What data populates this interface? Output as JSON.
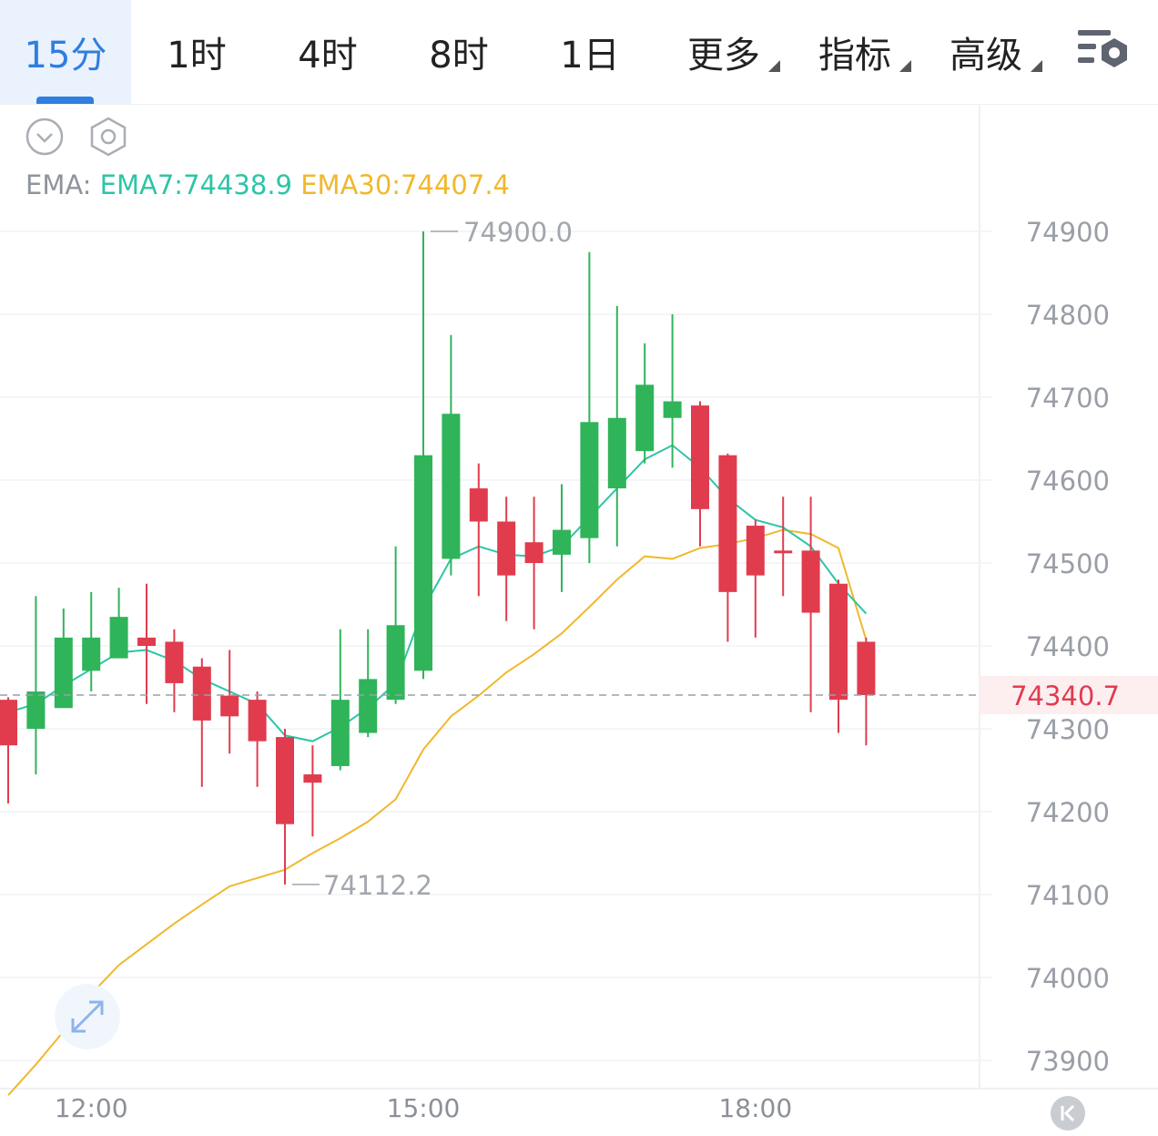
{
  "tabs": [
    {
      "label": "15分",
      "active": true
    },
    {
      "label": "1时"
    },
    {
      "label": "4时"
    },
    {
      "label": "8时"
    },
    {
      "label": "1日"
    },
    {
      "label": "更多",
      "dropdown": true
    },
    {
      "label": "指标",
      "dropdown": true
    },
    {
      "label": "高级",
      "dropdown": true
    }
  ],
  "icons": {
    "toolbar_settings": "chart-settings-icon",
    "collapse": "chevron-down-circle-icon",
    "settings": "hexagon-settings-icon",
    "expand": "expand-arrows-icon",
    "back": "double-chevron-left-icon"
  },
  "ema": {
    "label": "EMA:",
    "ema7": "EMA7:74438.9",
    "ema30": "EMA30:74407.4"
  },
  "colors": {
    "up": "#2fb45a",
    "down": "#e03c4e",
    "ema7": "#2ec4a7",
    "ema30": "#f0b82d",
    "accent": "#2f7ee0"
  },
  "chart_data": {
    "type": "candlestick",
    "interval": "15分",
    "ylim": [
      73850,
      74960
    ],
    "y_ticks": [
      74900,
      74800,
      74700,
      74600,
      74500,
      74400,
      74300,
      74200,
      74100,
      74000,
      73900
    ],
    "x_ticks": [
      "12:00",
      "15:00",
      "18:00"
    ],
    "current_price": "74340.7",
    "high_marker": "74900.0",
    "low_marker": "74112.2",
    "candles": [
      {
        "o": 74335,
        "h": 74338,
        "l": 74210,
        "c": 74280
      },
      {
        "o": 74300,
        "h": 74460,
        "l": 74245,
        "c": 74345
      },
      {
        "o": 74325,
        "h": 74445,
        "l": 74335,
        "c": 74410
      },
      {
        "o": 74370,
        "h": 74465,
        "l": 74345,
        "c": 74410
      },
      {
        "o": 74385,
        "h": 74470,
        "l": 74395,
        "c": 74435
      },
      {
        "o": 74410,
        "h": 74475,
        "l": 74330,
        "c": 74400
      },
      {
        "o": 74405,
        "h": 74420,
        "l": 74320,
        "c": 74355
      },
      {
        "o": 74375,
        "h": 74385,
        "l": 74230,
        "c": 74310
      },
      {
        "o": 74340,
        "h": 74395,
        "l": 74270,
        "c": 74315
      },
      {
        "o": 74335,
        "h": 74345,
        "l": 74230,
        "c": 74285
      },
      {
        "o": 74290,
        "h": 74300,
        "l": 74112.2,
        "c": 74185
      },
      {
        "o": 74245,
        "h": 74280,
        "l": 74170,
        "c": 74235
      },
      {
        "o": 74255,
        "h": 74420,
        "l": 74250,
        "c": 74335
      },
      {
        "o": 74295,
        "h": 74420,
        "l": 74290,
        "c": 74360
      },
      {
        "o": 74335,
        "h": 74520,
        "l": 74330,
        "c": 74425
      },
      {
        "o": 74370,
        "h": 74900,
        "l": 74360,
        "c": 74630
      },
      {
        "o": 74505,
        "h": 74775,
        "l": 74485,
        "c": 74680
      },
      {
        "o": 74590,
        "h": 74620,
        "l": 74460,
        "c": 74550
      },
      {
        "o": 74550,
        "h": 74580,
        "l": 74430,
        "c": 74485
      },
      {
        "o": 74525,
        "h": 74580,
        "l": 74420,
        "c": 74500
      },
      {
        "o": 74510,
        "h": 74595,
        "l": 74465,
        "c": 74540
      },
      {
        "o": 74530,
        "h": 74875,
        "l": 74500,
        "c": 74670
      },
      {
        "o": 74590,
        "h": 74810,
        "l": 74520,
        "c": 74675
      },
      {
        "o": 74635,
        "h": 74765,
        "l": 74620,
        "c": 74715
      },
      {
        "o": 74675,
        "h": 74800,
        "l": 74615,
        "c": 74695
      },
      {
        "o": 74690,
        "h": 74695,
        "l": 74520,
        "c": 74565
      },
      {
        "o": 74630,
        "h": 74632,
        "l": 74405,
        "c": 74465
      },
      {
        "o": 74545,
        "h": 74552,
        "l": 74410,
        "c": 74485
      },
      {
        "o": 74515,
        "h": 74580,
        "l": 74460,
        "c": 74512
      },
      {
        "o": 74515,
        "h": 74580,
        "l": 74320,
        "c": 74440
      },
      {
        "o": 74475,
        "h": 74480,
        "l": 74295,
        "c": 74335
      },
      {
        "o": 74405,
        "h": 74410,
        "l": 74280,
        "c": 74340.7
      }
    ],
    "series": [
      {
        "name": "EMA7",
        "values": [
          74320,
          74330,
          74352,
          74372,
          74392,
          74395,
          74382,
          74360,
          74345,
          74330,
          74292,
          74285,
          74302,
          74325,
          74355,
          74445,
          74505,
          74520,
          74510,
          74508,
          74520,
          74555,
          74590,
          74625,
          74642,
          74615,
          74578,
          74552,
          74543,
          74520,
          74475,
          74438.9
        ]
      },
      {
        "name": "EMA30",
        "values": [
          73858,
          73895,
          73935,
          73980,
          74015,
          74040,
          74065,
          74088,
          74110,
          74120,
          74130,
          74150,
          74168,
          74188,
          74215,
          74275,
          74315,
          74340,
          74368,
          74390,
          74415,
          74447,
          74480,
          74508,
          74505,
          74518,
          74523,
          74530,
          74540,
          74535,
          74518,
          74407.4
        ]
      }
    ]
  }
}
